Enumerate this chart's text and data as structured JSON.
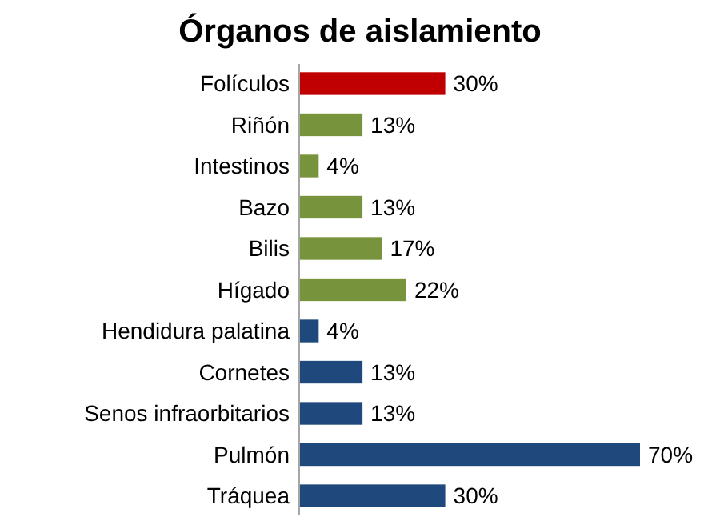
{
  "chart_data": {
    "type": "bar",
    "orientation": "horizontal",
    "title": "Órganos de aislamiento",
    "categories": [
      "Folículos",
      "Riñón",
      "Intestinos",
      "Bazo",
      "Bilis",
      "Hígado",
      "Hendidura palatina",
      "Cornetes",
      "Senos infraorbitarios",
      "Pulmón",
      "Tráquea"
    ],
    "values": [
      30,
      13,
      4,
      13,
      17,
      22,
      4,
      13,
      13,
      70,
      30
    ],
    "colors": [
      "#c00000",
      "#77933c",
      "#77933c",
      "#77933c",
      "#77933c",
      "#77933c",
      "#1f497d",
      "#1f497d",
      "#1f497d",
      "#1f497d",
      "#1f497d"
    ],
    "value_labels": [
      "30%",
      "13%",
      "4%",
      "13%",
      "17%",
      "22%",
      "4%",
      "13%",
      "13%",
      "70%",
      "30%"
    ],
    "xlim": [
      0,
      70
    ]
  }
}
